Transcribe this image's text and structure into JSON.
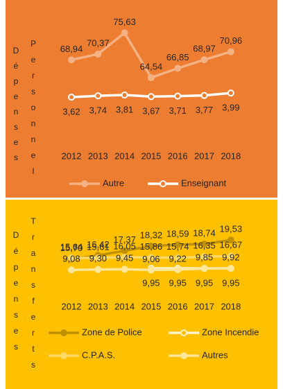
{
  "chart_data": [
    {
      "type": "line",
      "background": "#ED7D31",
      "ylabel": [
        "Dépenses",
        "Personnel"
      ],
      "categories": [
        "2012",
        "2013",
        "2014",
        "2015",
        "2016",
        "2017",
        "2018"
      ],
      "ylim": [
        58,
        80
      ],
      "y2lim": [
        3,
        11
      ],
      "legend": "bottom",
      "series": [
        {
          "name": "Autre",
          "color": "#F4B183",
          "marker": "filled",
          "label_side": "above",
          "values": [
            68.94,
            70.37,
            75.63,
            64.54,
            66.85,
            68.97,
            70.96
          ],
          "value_labels": [
            "68,94",
            "70,37",
            "75,63",
            "64,54",
            "66,85",
            "68,97",
            "70,96"
          ]
        },
        {
          "name": "Enseignant",
          "color": "#FFFFFF",
          "marker": "hollow",
          "axis": "y2",
          "label_side": "below",
          "values": [
            3.62,
            3.74,
            3.81,
            3.67,
            3.71,
            3.77,
            3.99
          ],
          "value_labels": [
            "3,62",
            "3,74",
            "3,81",
            "3,67",
            "3,71",
            "3,77",
            "3,99"
          ]
        }
      ]
    },
    {
      "type": "line",
      "background": "#FFC000",
      "ylabel": [
        "Dépenses",
        "Transferts"
      ],
      "categories": [
        "2012",
        "2013",
        "2014",
        "2015",
        "2016",
        "2017",
        "2018"
      ],
      "ylim": [
        12,
        26
      ],
      "y2lim": [
        5,
        43
      ],
      "legend": "bottom",
      "series": [
        {
          "name": "Zone de Police",
          "color": "#BF9000",
          "marker": "filled",
          "label_side": "above",
          "values": [
            15.7,
            16.42,
            17.37,
            18.32,
            18.59,
            18.74,
            19.53
          ],
          "value_labels": [
            "15,70",
            "16,42",
            "17,37",
            "18,32",
            "18,59",
            "18,74",
            "19,53"
          ]
        },
        {
          "name": "Zone Incendie",
          "color": "#FFF2CC",
          "marker": "hollow",
          "axis": "y2",
          "label_side": "below",
          "values": [
            null,
            null,
            null,
            9.95,
            9.95,
            9.95,
            9.95
          ],
          "value_labels": [
            null,
            null,
            null,
            "9,95",
            "9,95",
            "9,95",
            "9,95"
          ]
        },
        {
          "name": "C.P.A.S.",
          "color": "#FFD966",
          "marker": "filled",
          "axis": "y2",
          "label_side": "above",
          "values": [
            15.64,
            15.61,
            16.05,
            15.86,
            15.74,
            16.35,
            16.67
          ],
          "value_labels": [
            "15,64",
            "15,61",
            "16,05",
            "15,86",
            "15,74",
            "16,35",
            "16,67"
          ]
        },
        {
          "name": "Autres",
          "color": "#FFE699",
          "marker": "filled",
          "axis": "y2",
          "label_side": "above",
          "values": [
            9.08,
            9.3,
            9.45,
            9.06,
            9.22,
            9.85,
            9.92
          ],
          "value_labels": [
            "9,08",
            "9,30",
            "9,45",
            "9,06",
            "9,22",
            "9,85",
            "9,92"
          ]
        }
      ]
    }
  ]
}
